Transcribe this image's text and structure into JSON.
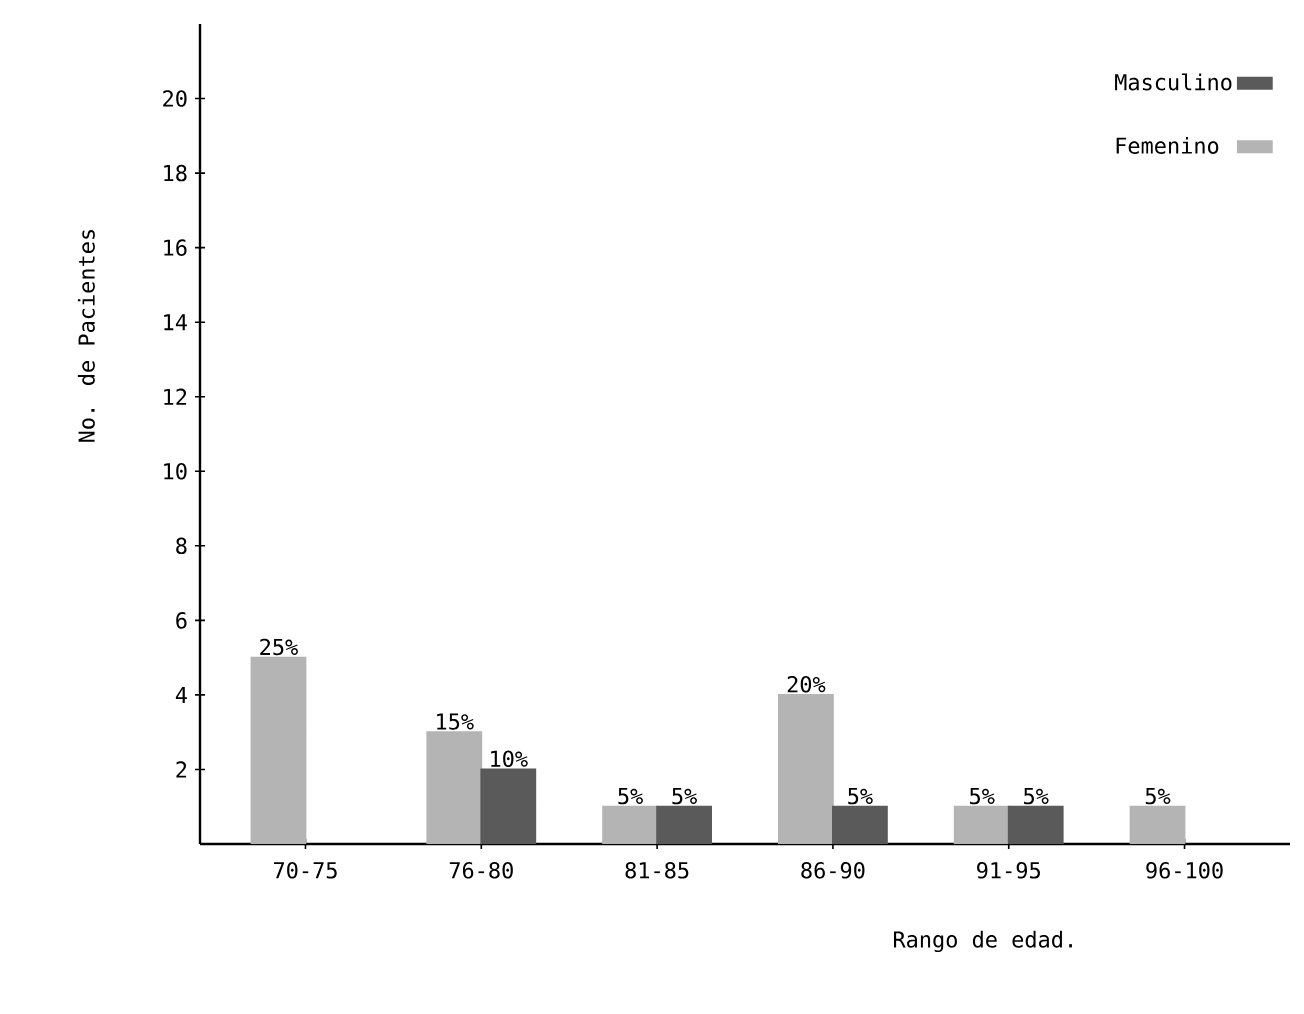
{
  "chart_data": {
    "type": "bar",
    "xlabel": "Rango de edad.",
    "ylabel": "No. de Pacientes",
    "categories": [
      "70-75",
      "76-80",
      "81-85",
      "86-90",
      "91-95",
      "96-100"
    ],
    "series": [
      {
        "name": "Femenino",
        "color": "#b4b4b4",
        "values": [
          5,
          3,
          1,
          4,
          1,
          1
        ]
      },
      {
        "name": "Masculino",
        "color": "#5a5a5a",
        "values": [
          null,
          2,
          1,
          1,
          1,
          null
        ]
      }
    ],
    "annotations": [
      {
        "text": "25%",
        "x": "70-75",
        "y": 5
      },
      {
        "text": "15%",
        "x": "76-80",
        "y": 3
      },
      {
        "text": "10%",
        "x": "76-80",
        "y": 2
      },
      {
        "text": "5%",
        "x": "81-85",
        "y": 1
      },
      {
        "text": "5%",
        "x": "81-85",
        "y": 1
      },
      {
        "text": "20%",
        "x": "86-90",
        "y": 4
      },
      {
        "text": "5%",
        "x": "86-90",
        "y": 1
      },
      {
        "text": "5%",
        "x": "91-95",
        "y": 1
      },
      {
        "text": "5%",
        "x": "91-95",
        "y": 1
      },
      {
        "text": "5%",
        "x": "96-100",
        "y": 1
      }
    ],
    "ylim": [
      0,
      22
    ],
    "yticks": [
      2,
      4,
      6,
      8,
      10,
      12,
      14,
      16,
      18,
      20
    ],
    "grid": false,
    "legend": "top right"
  }
}
